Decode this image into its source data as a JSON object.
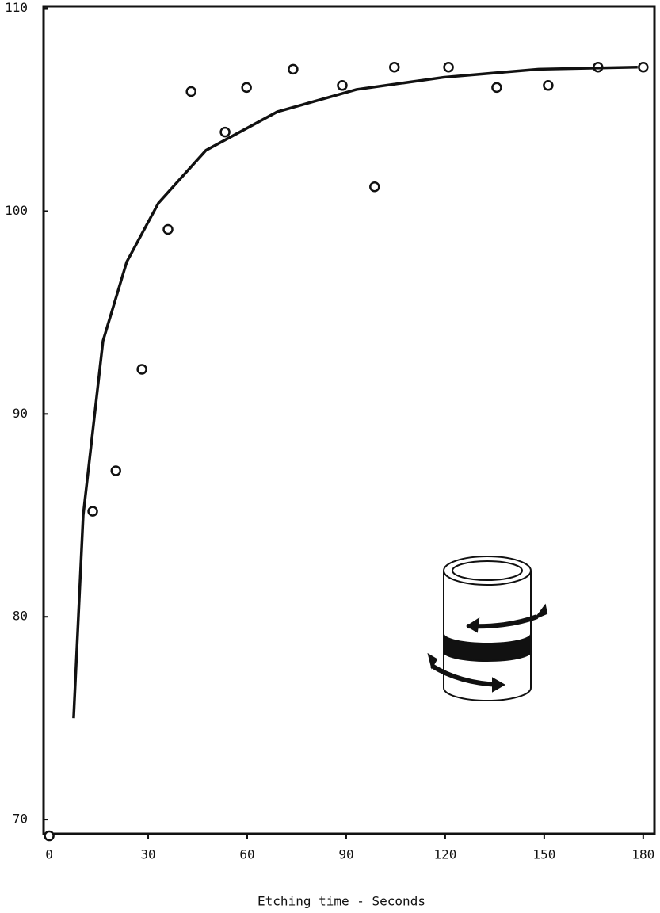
{
  "chart_data": {
    "type": "scatter",
    "x_label": "Etching time - Seconds",
    "xlim": [
      -1.7,
      183.4
    ],
    "xticks": [
      0,
      30,
      60,
      90,
      120,
      150,
      180
    ],
    "ylim": [
      69.3,
      110.1
    ],
    "yticks": [
      70,
      80,
      90,
      100,
      110
    ],
    "grid": false,
    "series": [
      {
        "type": "scatter",
        "color": "#111111",
        "x": [
          0,
          13.2,
          20.2,
          28.1,
          36.0,
          43.0,
          53.3,
          59.8,
          73.9,
          88.8,
          98.6,
          104.6,
          121.0,
          135.6,
          151.2,
          166.3,
          180
        ],
        "values": [
          69.2,
          85.2,
          87.2,
          92.2,
          99.1,
          105.9,
          103.9,
          106.1,
          107.0,
          106.2,
          101.2,
          107.1,
          107.1,
          106.1,
          106.2,
          107.1,
          107.1
        ]
      },
      {
        "type": "line",
        "color": "#111111",
        "x": [
          7.4,
          10.3,
          16.3,
          23.5,
          33.1,
          47.5,
          69.1,
          93.1,
          119.5,
          148.3,
          178.3
        ],
        "values": [
          75.0,
          85.0,
          93.6,
          97.5,
          100.4,
          103.0,
          104.9,
          106.0,
          106.6,
          107.0,
          107.1
        ]
      }
    ]
  }
}
